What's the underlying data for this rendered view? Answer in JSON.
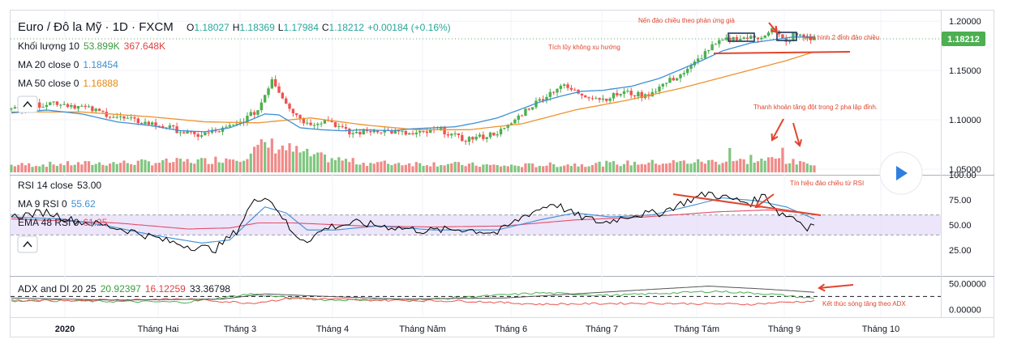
{
  "header": {
    "symbol": "Euro / Đô la Mỹ · 1D · FXCM",
    "o_label": "O",
    "o_value": "1.18027",
    "h_label": "H",
    "h_value": "1.18369",
    "l_label": "L",
    "l_value": "1.17984",
    "c_label": "C",
    "c_value": "1.18212",
    "change": "+0.00184 (+0.16%)"
  },
  "legends": {
    "volume_label": "Khối lượng 10",
    "volume_v1": "53.899K",
    "volume_v2": "367.648K",
    "ma20_label": "MA 20 close 0",
    "ma20_value": "1.18454",
    "ma50_label": "MA 50 close 0",
    "ma50_value": "1.16888",
    "rsi_label": "RSI 14 close",
    "rsi_value": "53.00",
    "ma9rsi_label": "MA 9 RSI 0",
    "ma9rsi_value": "55.62",
    "ema48_label": "EMA 48 RSI 0",
    "ema48_value": "61.25",
    "adx_label": "ADX and DI 20 25",
    "adx_v1": "20.92397",
    "adx_v2": "16.12259",
    "adx_v3": "33.36798"
  },
  "annotations": {
    "reversal_candles": "Nến đảo chiều theo phản ứng giá",
    "double_top": "Mẫu hình 2 đỉnh đảo chiều",
    "accumulation": "Tích lũy không xu hướng",
    "liquidity": "Thanh khoản tăng đột trong 2 pha lập đỉnh.",
    "rsi_signal": "Tín hiệu đảo chiều từ RSI",
    "adx_end": "Kết thúc sóng tăng theo ADX"
  },
  "colors": {
    "up": "#4caf50",
    "down": "#ef5350",
    "ma20": "#3d8fd4",
    "ma50": "#f0922c",
    "rsi": "#000000",
    "ma9rsi": "#3d8fd4",
    "ema48": "#e04e6c",
    "di_plus": "#4caf50",
    "di_minus": "#ef5350",
    "adx": "#555555",
    "annotation": "#e0452d",
    "price_tag": "#4caf50",
    "rsi_band": "#e7dcf7"
  },
  "icons": {
    "collapse": "chevron-up-icon",
    "play": "play-icon"
  },
  "chart_data": [
    {
      "type": "candlestick",
      "title": "Euro / Đô la Mỹ · 1D · FXCM",
      "x_ticks": [
        "2020",
        "Tháng Hai",
        "Tháng 3",
        "Tháng 4",
        "Tháng Năm",
        "Tháng 6",
        "Tháng 7",
        "Tháng Tám",
        "Tháng 9",
        "Tháng 10"
      ],
      "y_ticks": [
        "1.20000",
        "1.15000",
        "1.10000",
        "1.05000"
      ],
      "ylim": [
        1.046,
        1.21
      ],
      "last_price": "1.18212",
      "ma20_key": [
        [
          0,
          1.107
        ],
        [
          10,
          1.11
        ],
        [
          20,
          1.106
        ],
        [
          30,
          1.098
        ],
        [
          40,
          1.094
        ],
        [
          48,
          1.089
        ],
        [
          55,
          1.088
        ],
        [
          62,
          1.092
        ],
        [
          68,
          1.1
        ],
        [
          72,
          1.106
        ],
        [
          76,
          1.105
        ],
        [
          82,
          1.092
        ],
        [
          88,
          1.09
        ],
        [
          94,
          1.089
        ],
        [
          100,
          1.09
        ],
        [
          108,
          1.089
        ],
        [
          114,
          1.091
        ],
        [
          120,
          1.092
        ],
        [
          126,
          1.093
        ],
        [
          132,
          1.097
        ],
        [
          138,
          1.102
        ],
        [
          144,
          1.11
        ],
        [
          150,
          1.118
        ],
        [
          156,
          1.124
        ],
        [
          162,
          1.129
        ],
        [
          168,
          1.13
        ],
        [
          176,
          1.134
        ],
        [
          184,
          1.142
        ],
        [
          190,
          1.151
        ],
        [
          196,
          1.16
        ],
        [
          202,
          1.17
        ],
        [
          210,
          1.178
        ],
        [
          216,
          1.181
        ],
        [
          222,
          1.184
        ],
        [
          228,
          1.184
        ]
      ],
      "ma50_key": [
        [
          0,
          1.108
        ],
        [
          20,
          1.108
        ],
        [
          40,
          1.103
        ],
        [
          55,
          1.098
        ],
        [
          70,
          1.097
        ],
        [
          85,
          1.102
        ],
        [
          100,
          1.095
        ],
        [
          115,
          1.09
        ],
        [
          130,
          1.09
        ],
        [
          145,
          1.096
        ],
        [
          160,
          1.11
        ],
        [
          175,
          1.12
        ],
        [
          190,
          1.132
        ],
        [
          205,
          1.146
        ],
        [
          220,
          1.16
        ],
        [
          228,
          1.169
        ]
      ],
      "candles_key": [
        [
          0,
          1.11
        ],
        [
          12,
          1.118
        ],
        [
          20,
          1.113
        ],
        [
          32,
          1.101
        ],
        [
          44,
          1.093
        ],
        [
          52,
          1.084
        ],
        [
          58,
          1.088
        ],
        [
          64,
          1.095
        ],
        [
          70,
          1.11
        ],
        [
          72,
          1.126
        ],
        [
          74,
          1.142
        ],
        [
          76,
          1.129
        ],
        [
          80,
          1.108
        ],
        [
          84,
          1.096
        ],
        [
          90,
          1.1
        ],
        [
          96,
          1.086
        ],
        [
          104,
          1.09
        ],
        [
          114,
          1.085
        ],
        [
          122,
          1.09
        ],
        [
          128,
          1.08
        ],
        [
          134,
          1.083
        ],
        [
          140,
          1.09
        ],
        [
          146,
          1.11
        ],
        [
          152,
          1.125
        ],
        [
          156,
          1.135
        ],
        [
          162,
          1.126
        ],
        [
          168,
          1.121
        ],
        [
          174,
          1.128
        ],
        [
          180,
          1.124
        ],
        [
          186,
          1.138
        ],
        [
          192,
          1.15
        ],
        [
          198,
          1.172
        ],
        [
          202,
          1.18
        ],
        [
          206,
          1.183
        ],
        [
          212,
          1.183
        ],
        [
          216,
          1.192
        ],
        [
          220,
          1.178
        ],
        [
          222,
          1.186
        ],
        [
          228,
          1.182
        ]
      ],
      "volume_key": [
        [
          0,
          10
        ],
        [
          20,
          12
        ],
        [
          40,
          14
        ],
        [
          55,
          16
        ],
        [
          66,
          22
        ],
        [
          72,
          38
        ],
        [
          76,
          36
        ],
        [
          80,
          30
        ],
        [
          86,
          22
        ],
        [
          100,
          13
        ],
        [
          120,
          12
        ],
        [
          140,
          9
        ],
        [
          150,
          10
        ],
        [
          170,
          12
        ],
        [
          190,
          14
        ],
        [
          210,
          16
        ],
        [
          218,
          18
        ],
        [
          224,
          12
        ],
        [
          228,
          14
        ]
      ]
    },
    {
      "type": "line",
      "title": "RSI 14 close",
      "y_ticks": [
        "100.00",
        "75.00",
        "50.00",
        "25.00"
      ],
      "ylim": [
        0,
        100
      ],
      "band": [
        40,
        60
      ],
      "rsi_key": [
        [
          0,
          58
        ],
        [
          10,
          63
        ],
        [
          18,
          54
        ],
        [
          26,
          50
        ],
        [
          34,
          44
        ],
        [
          44,
          34
        ],
        [
          52,
          28
        ],
        [
          58,
          26
        ],
        [
          64,
          44
        ],
        [
          68,
          70
        ],
        [
          72,
          80
        ],
        [
          76,
          64
        ],
        [
          80,
          40
        ],
        [
          84,
          35
        ],
        [
          90,
          48
        ],
        [
          98,
          52
        ],
        [
          108,
          48
        ],
        [
          118,
          44
        ],
        [
          128,
          46
        ],
        [
          138,
          42
        ],
        [
          146,
          60
        ],
        [
          154,
          72
        ],
        [
          160,
          60
        ],
        [
          168,
          52
        ],
        [
          176,
          60
        ],
        [
          184,
          62
        ],
        [
          192,
          74
        ],
        [
          198,
          82
        ],
        [
          204,
          76
        ],
        [
          210,
          72
        ],
        [
          214,
          80
        ],
        [
          218,
          62
        ],
        [
          222,
          58
        ],
        [
          226,
          48
        ],
        [
          228,
          52
        ]
      ],
      "ma9_key": [
        [
          0,
          58
        ],
        [
          14,
          56
        ],
        [
          26,
          50
        ],
        [
          40,
          40
        ],
        [
          54,
          32
        ],
        [
          62,
          35
        ],
        [
          68,
          55
        ],
        [
          72,
          68
        ],
        [
          78,
          62
        ],
        [
          84,
          45
        ],
        [
          92,
          45
        ],
        [
          104,
          49
        ],
        [
          120,
          45
        ],
        [
          138,
          45
        ],
        [
          150,
          55
        ],
        [
          160,
          62
        ],
        [
          170,
          58
        ],
        [
          182,
          60
        ],
        [
          194,
          70
        ],
        [
          202,
          77
        ],
        [
          212,
          74
        ],
        [
          220,
          68
        ],
        [
          228,
          56
        ]
      ],
      "ema48_key": [
        [
          0,
          56
        ],
        [
          30,
          52
        ],
        [
          50,
          46
        ],
        [
          62,
          47
        ],
        [
          70,
          52
        ],
        [
          80,
          52
        ],
        [
          100,
          49
        ],
        [
          120,
          48
        ],
        [
          140,
          49
        ],
        [
          160,
          55
        ],
        [
          180,
          58
        ],
        [
          200,
          63
        ],
        [
          215,
          65
        ],
        [
          228,
          61
        ]
      ]
    },
    {
      "type": "line",
      "title": "ADX and DI 20 25",
      "y_ticks": [
        "50.00000",
        "0.00000"
      ],
      "ylim": [
        -12,
        60
      ],
      "threshold": 25,
      "di_plus_key": [
        [
          0,
          18
        ],
        [
          20,
          16
        ],
        [
          50,
          14
        ],
        [
          68,
          30
        ],
        [
          76,
          24
        ],
        [
          90,
          18
        ],
        [
          120,
          20
        ],
        [
          150,
          32
        ],
        [
          170,
          27
        ],
        [
          200,
          35
        ],
        [
          215,
          30
        ],
        [
          228,
          21
        ]
      ],
      "di_minus_key": [
        [
          0,
          16
        ],
        [
          20,
          18
        ],
        [
          50,
          20
        ],
        [
          68,
          12
        ],
        [
          80,
          22
        ],
        [
          100,
          18
        ],
        [
          130,
          16
        ],
        [
          150,
          10
        ],
        [
          180,
          12
        ],
        [
          210,
          10
        ],
        [
          220,
          14
        ],
        [
          228,
          16
        ]
      ],
      "adx_key": [
        [
          0,
          22
        ],
        [
          30,
          18
        ],
        [
          60,
          20
        ],
        [
          72,
          30
        ],
        [
          86,
          26
        ],
        [
          110,
          20
        ],
        [
          140,
          22
        ],
        [
          160,
          30
        ],
        [
          180,
          38
        ],
        [
          198,
          45
        ],
        [
          212,
          40
        ],
        [
          222,
          36
        ],
        [
          228,
          33
        ]
      ]
    }
  ]
}
